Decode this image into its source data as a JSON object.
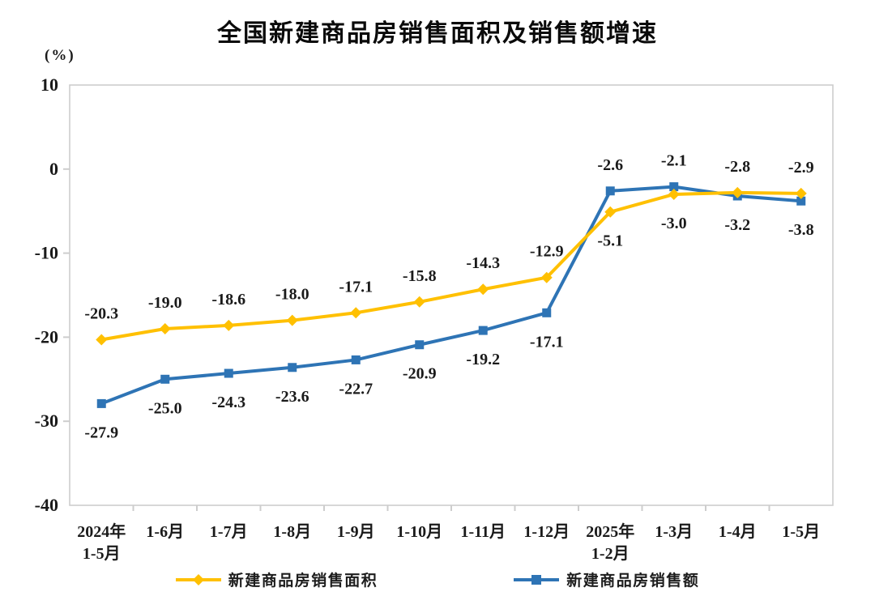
{
  "chart_data": {
    "type": "line",
    "title": "全国新建商品房销售面积及销售额增速",
    "unit_label": "(%)",
    "categories": [
      "2024年\n1-5月",
      "1-6月",
      "1-7月",
      "1-8月",
      "1-9月",
      "1-10月",
      "1-11月",
      "1-12月",
      "2025年\n1-2月",
      "1-3月",
      "1-4月",
      "1-5月"
    ],
    "series": [
      {
        "name": "新建商品房销售面积",
        "color": "#FFC000",
        "marker": "diamond",
        "values": [
          -20.3,
          -19.0,
          -18.6,
          -18.0,
          -17.1,
          -15.8,
          -14.3,
          -12.9,
          -5.1,
          -3.0,
          -2.8,
          -2.9
        ],
        "label_sides": [
          "above",
          "above",
          "above",
          "above",
          "above",
          "above",
          "above",
          "above",
          "below",
          "below",
          "above",
          "above"
        ]
      },
      {
        "name": "新建商品房销售额",
        "color": "#2E74B5",
        "marker": "square",
        "values": [
          -27.9,
          -25.0,
          -24.3,
          -23.6,
          -22.7,
          -20.9,
          -19.2,
          -17.1,
          -2.6,
          -2.1,
          -3.2,
          -3.8
        ],
        "label_sides": [
          "below",
          "below",
          "below",
          "below",
          "below",
          "below",
          "below",
          "below",
          "above",
          "above",
          "below",
          "below"
        ]
      }
    ],
    "ylim": [
      -40,
      10
    ],
    "yticks": [
      10,
      0,
      -10,
      -20,
      -30,
      -40
    ],
    "grid": false,
    "legend_position": "bottom",
    "axis_color": "#CDCDCD",
    "label_color": "#1a1a1a"
  }
}
